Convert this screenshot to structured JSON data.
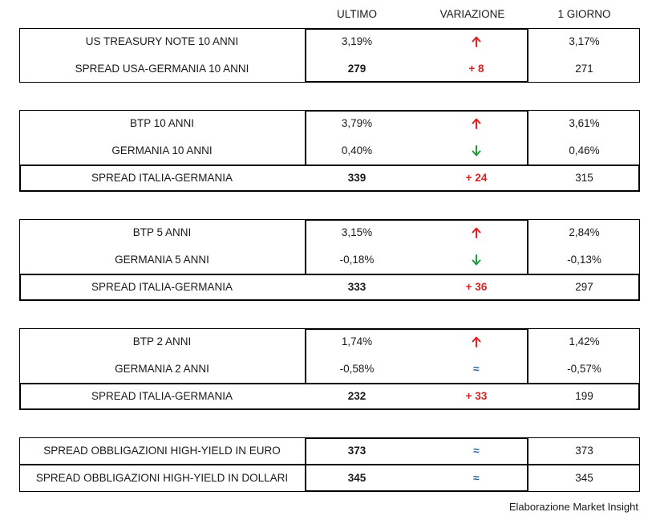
{
  "headers": {
    "last": "ULTIMO",
    "change": "VARIAZIONE",
    "day": "1 GIORNO"
  },
  "colors": {
    "up": "#e02020",
    "down": "#1f9a3a",
    "neutral": "#1f5f9a"
  },
  "groups": [
    {
      "rows": [
        {
          "label": "US TREASURY NOTE 10 ANNI",
          "last": "3,19%",
          "change_icon": "arrow-up-icon",
          "change": "",
          "day": "3,17%"
        },
        {
          "label": "SPREAD USA-GERMANIA 10 ANNI",
          "last": "279",
          "change_icon": "",
          "change": "+ 8",
          "day": "271"
        }
      ]
    },
    {
      "rows": [
        {
          "label": "BTP 10 ANNI",
          "last": "3,79%",
          "change_icon": "arrow-up-icon",
          "change": "",
          "day": "3,61%"
        },
        {
          "label": "GERMANIA 10 ANNI",
          "last": "0,40%",
          "change_icon": "arrow-down-icon",
          "change": "",
          "day": "0,46%"
        },
        {
          "label": "SPREAD ITALIA-GERMANIA",
          "last": "339",
          "change_icon": "",
          "change": "+ 24",
          "day": "315"
        }
      ]
    },
    {
      "rows": [
        {
          "label": "BTP 5 ANNI",
          "last": "3,15%",
          "change_icon": "arrow-up-icon",
          "change": "",
          "day": "2,84%"
        },
        {
          "label": "GERMANIA 5 ANNI",
          "last": "-0,18%",
          "change_icon": "arrow-down-icon",
          "change": "",
          "day": "-0,13%"
        },
        {
          "label": "SPREAD ITALIA-GERMANIA",
          "last": "333",
          "change_icon": "",
          "change": "+ 36",
          "day": "297"
        }
      ]
    },
    {
      "rows": [
        {
          "label": "BTP 2 ANNI",
          "last": "1,74%",
          "change_icon": "arrow-up-icon",
          "change": "",
          "day": "1,42%"
        },
        {
          "label": "GERMANIA 2 ANNI",
          "last": "-0,58%",
          "change_icon": "",
          "change": "≈",
          "day": "-0,57%"
        },
        {
          "label": "SPREAD ITALIA-GERMANIA",
          "last": "232",
          "change_icon": "",
          "change": "+ 33",
          "day": "199"
        }
      ]
    },
    {
      "rows": [
        {
          "label": "SPREAD OBBLIGAZIONI HIGH-YIELD IN EURO",
          "last": "373",
          "change_icon": "",
          "change": "≈",
          "day": "373"
        },
        {
          "label": "SPREAD OBBLIGAZIONI HIGH-YIELD IN DOLLARI",
          "last": "345",
          "change_icon": "",
          "change": "≈",
          "day": "345"
        }
      ]
    }
  ],
  "footer": "Elaborazione Market Insight"
}
